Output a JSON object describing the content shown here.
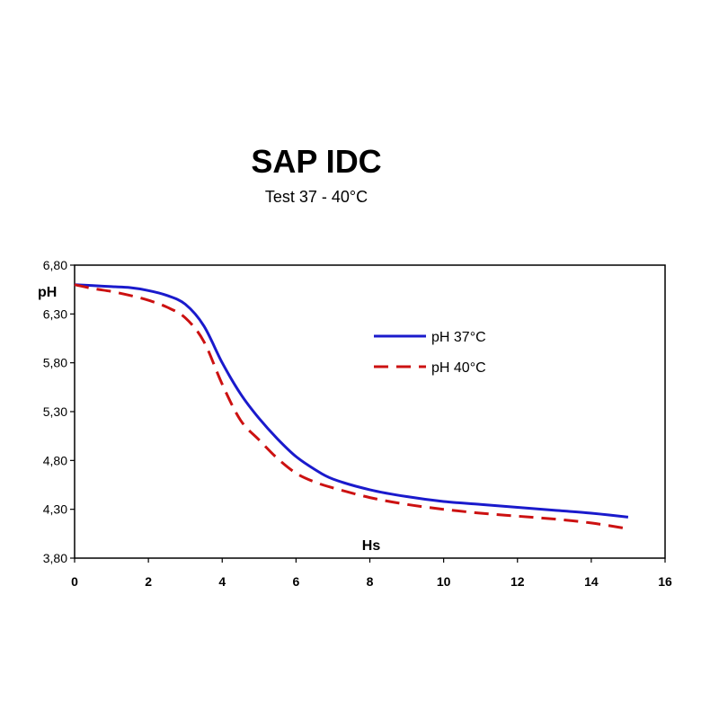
{
  "chart_data": {
    "type": "line",
    "title": "SAP IDC",
    "subtitle": "Test 37 - 40°C",
    "xlabel": "Hs",
    "ylabel": "pH",
    "xlim": [
      0,
      16
    ],
    "ylim": [
      3.8,
      6.8
    ],
    "x_ticks": [
      0,
      2,
      4,
      6,
      8,
      10,
      12,
      14,
      16
    ],
    "x_tick_labels": [
      "0",
      "2",
      "4",
      "6",
      "8",
      "10",
      "12",
      "14",
      "16"
    ],
    "y_ticks": [
      3.8,
      4.3,
      4.8,
      5.3,
      5.8,
      6.3,
      6.8
    ],
    "y_tick_labels": [
      "3,80",
      "4,30",
      "4,80",
      "5,30",
      "5,80",
      "6,30",
      "6,80"
    ],
    "grid": false,
    "legend_position": "upper-right",
    "series": [
      {
        "name": "pH 37°C",
        "color": "#1a1acc",
        "style": "solid",
        "x": [
          0,
          0.5,
          1,
          1.5,
          2,
          2.5,
          3,
          3.5,
          4,
          4.5,
          5,
          5.5,
          6,
          6.5,
          7,
          8,
          9,
          10,
          11,
          12,
          13,
          14,
          15
        ],
        "y": [
          6.6,
          6.59,
          6.58,
          6.57,
          6.54,
          6.49,
          6.4,
          6.18,
          5.8,
          5.48,
          5.23,
          5.02,
          4.84,
          4.71,
          4.61,
          4.5,
          4.43,
          4.38,
          4.35,
          4.32,
          4.29,
          4.26,
          4.22
        ]
      },
      {
        "name": "pH 40°C",
        "color": "#cc1111",
        "style": "dashed",
        "x": [
          0,
          0.5,
          1,
          1.5,
          2,
          2.5,
          3,
          3.5,
          4,
          4.5,
          5,
          5.5,
          6,
          6.5,
          7,
          8,
          9,
          10,
          11,
          12,
          13,
          14,
          15
        ],
        "y": [
          6.6,
          6.56,
          6.53,
          6.49,
          6.44,
          6.37,
          6.26,
          6.02,
          5.58,
          5.21,
          5.01,
          4.82,
          4.67,
          4.58,
          4.52,
          4.42,
          4.35,
          4.3,
          4.26,
          4.23,
          4.2,
          4.16,
          4.1
        ]
      }
    ]
  }
}
